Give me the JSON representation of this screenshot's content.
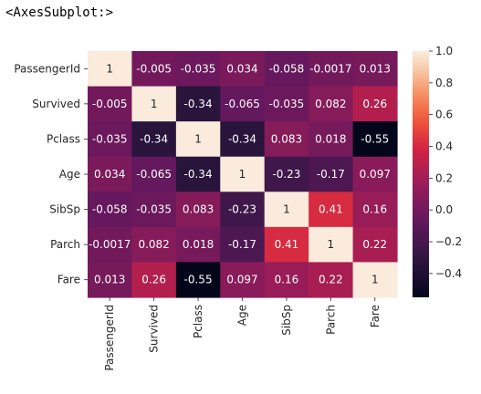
{
  "header": {
    "output_text": "<AxesSubplot:>"
  },
  "chart_data": {
    "type": "heatmap",
    "title": "",
    "xlabel": "",
    "ylabel": "",
    "categories": [
      "PassengerId",
      "Survived",
      "Pclass",
      "Age",
      "SibSp",
      "Parch",
      "Fare"
    ],
    "values": [
      [
        1,
        -0.005,
        -0.035,
        0.034,
        -0.058,
        -0.0017,
        0.013
      ],
      [
        -0.005,
        1,
        -0.34,
        -0.065,
        -0.035,
        0.082,
        0.26
      ],
      [
        -0.035,
        -0.34,
        1,
        -0.34,
        0.083,
        0.018,
        -0.55
      ],
      [
        0.034,
        -0.065,
        -0.34,
        1,
        -0.23,
        -0.17,
        0.097
      ],
      [
        -0.058,
        -0.035,
        0.083,
        -0.23,
        1,
        0.41,
        0.16
      ],
      [
        -0.0017,
        0.082,
        0.018,
        -0.17,
        0.41,
        1,
        0.22
      ],
      [
        0.013,
        0.26,
        -0.55,
        0.097,
        0.16,
        0.22,
        1
      ]
    ],
    "annotations": [
      [
        "1",
        "-0.005",
        "-0.035",
        "0.034",
        "-0.058",
        "-0.0017",
        "0.013"
      ],
      [
        "-0.005",
        "1",
        "-0.34",
        "-0.065",
        "-0.035",
        "0.082",
        "0.26"
      ],
      [
        "-0.035",
        "-0.34",
        "1",
        "-0.34",
        "0.083",
        "0.018",
        "-0.55"
      ],
      [
        "0.034",
        "-0.065",
        "-0.34",
        "1",
        "-0.23",
        "-0.17",
        "0.097"
      ],
      [
        "-0.058",
        "-0.035",
        "0.083",
        "-0.23",
        "1",
        "0.41",
        "0.16"
      ],
      [
        "-0.0017",
        "0.082",
        "0.018",
        "-0.17",
        "0.41",
        "1",
        "0.22"
      ],
      [
        "0.013",
        "0.26",
        "-0.55",
        "0.097",
        "0.16",
        "0.22",
        "1"
      ]
    ],
    "colormap": "rocket",
    "vmin": -0.55,
    "vmax": 1.0,
    "colorbar": {
      "ticks": [
        1.0,
        0.8,
        0.6,
        0.4,
        0.2,
        0.0,
        -0.2,
        -0.4
      ],
      "tick_labels": [
        "1.0",
        "0.8",
        "0.6",
        "0.4",
        "0.2",
        "0.0",
        "−0.2",
        "−0.4"
      ]
    }
  }
}
